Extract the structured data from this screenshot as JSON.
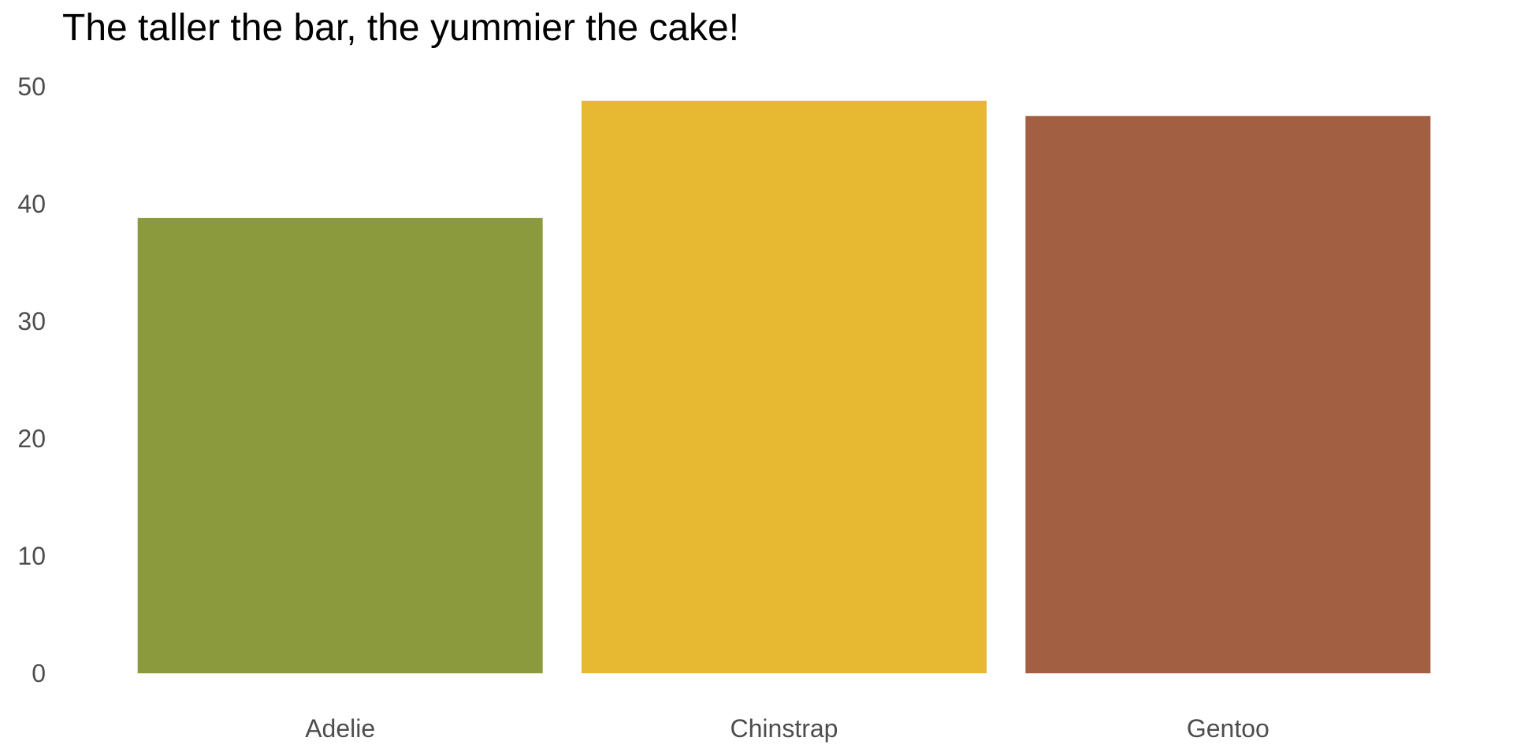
{
  "chart_data": {
    "type": "bar",
    "title": "The taller the bar, the yummier the cake!",
    "xlabel": "",
    "ylabel": "",
    "categories": [
      "Adelie",
      "Chinstrap",
      "Gentoo"
    ],
    "values": [
      38.8,
      48.8,
      47.5
    ],
    "colors": [
      "#8a9a3d",
      "#e7b831",
      "#a35f42"
    ],
    "ylim": [
      0,
      50
    ],
    "yticks": [
      "0",
      "10",
      "20",
      "30",
      "40",
      "50"
    ],
    "grid": false,
    "legend": "none"
  }
}
